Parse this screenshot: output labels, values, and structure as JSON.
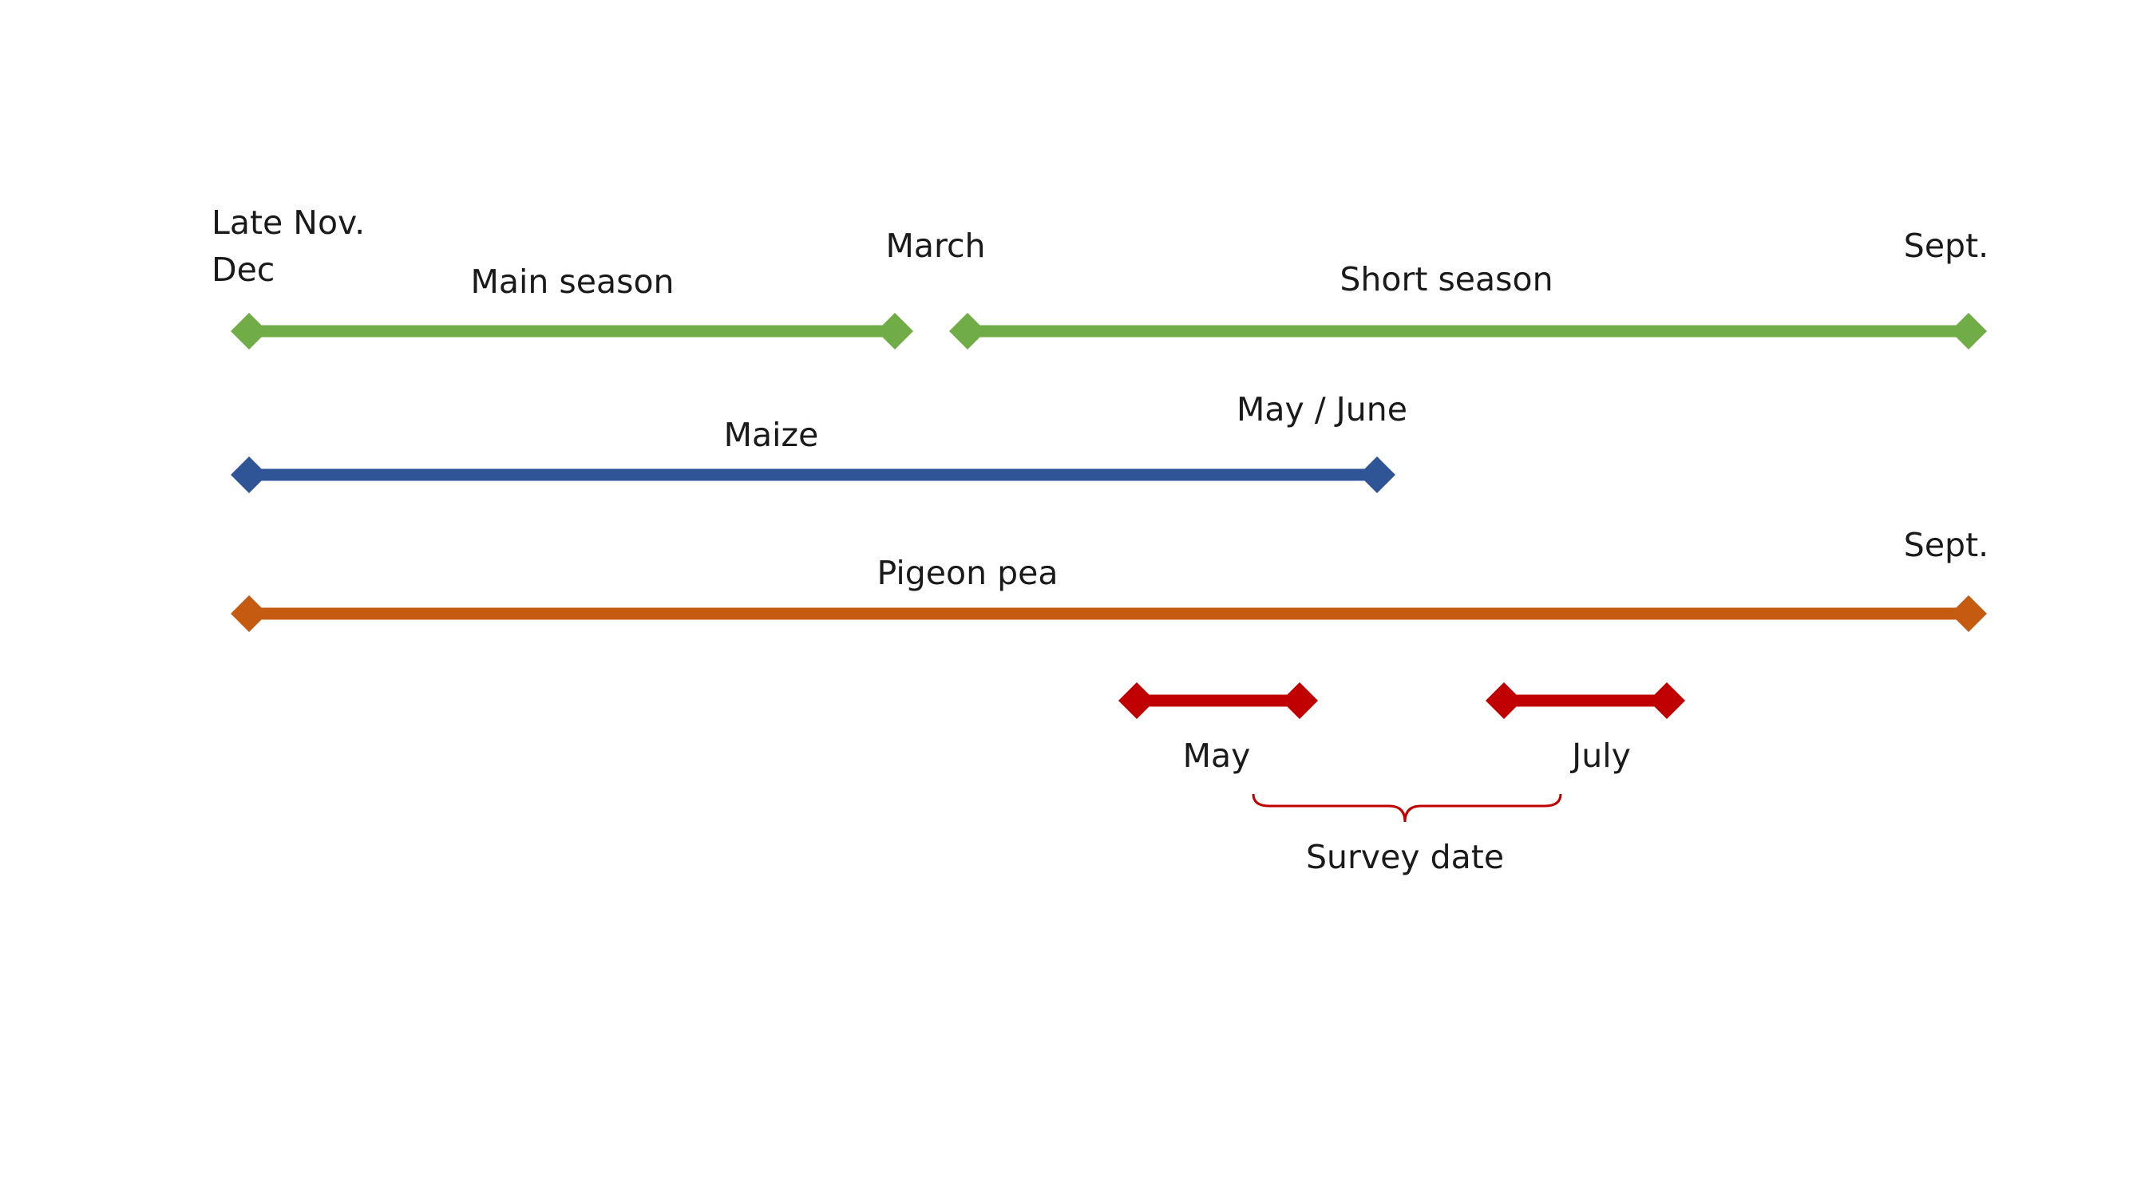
{
  "colors": {
    "season": "#70ad47",
    "maize": "#2f5597",
    "pigeon_pea": "#c55a11",
    "survey": "#c00000",
    "text": "#1a1a1a"
  },
  "labels": {
    "late_nov": "Late Nov.",
    "dec": "Dec",
    "main_season": "Main season",
    "march": "March",
    "short_season": "Short season",
    "sept_top": "Sept.",
    "maize": "Maize",
    "may_june": "May / June",
    "pigeon_pea": "Pigeon pea",
    "sept_pigeon": "Sept.",
    "may": "May",
    "july": "July",
    "survey_date": "Survey date"
  }
}
